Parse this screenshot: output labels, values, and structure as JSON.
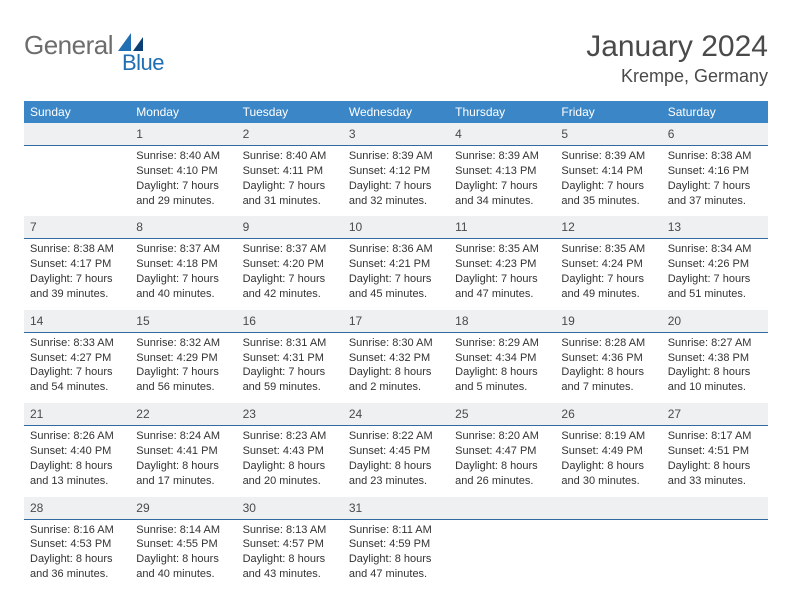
{
  "brand": {
    "part1": "General",
    "part2": "Blue"
  },
  "title": "January 2024",
  "location": "Krempe, Germany",
  "colors": {
    "header_bg": "#3b86c6",
    "daynum_bg": "#eef0f2",
    "daynum_border": "#2f6aa0",
    "logo_accent": "#1f6fb2",
    "text_muted": "#6d6d6d"
  },
  "daynames": [
    "Sunday",
    "Monday",
    "Tuesday",
    "Wednesday",
    "Thursday",
    "Friday",
    "Saturday"
  ],
  "weeks": [
    [
      {
        "n": "",
        "sunrise": "",
        "sunset": "",
        "daylight1": "",
        "daylight2": ""
      },
      {
        "n": "1",
        "sunrise": "Sunrise: 8:40 AM",
        "sunset": "Sunset: 4:10 PM",
        "daylight1": "Daylight: 7 hours",
        "daylight2": "and 29 minutes."
      },
      {
        "n": "2",
        "sunrise": "Sunrise: 8:40 AM",
        "sunset": "Sunset: 4:11 PM",
        "daylight1": "Daylight: 7 hours",
        "daylight2": "and 31 minutes."
      },
      {
        "n": "3",
        "sunrise": "Sunrise: 8:39 AM",
        "sunset": "Sunset: 4:12 PM",
        "daylight1": "Daylight: 7 hours",
        "daylight2": "and 32 minutes."
      },
      {
        "n": "4",
        "sunrise": "Sunrise: 8:39 AM",
        "sunset": "Sunset: 4:13 PM",
        "daylight1": "Daylight: 7 hours",
        "daylight2": "and 34 minutes."
      },
      {
        "n": "5",
        "sunrise": "Sunrise: 8:39 AM",
        "sunset": "Sunset: 4:14 PM",
        "daylight1": "Daylight: 7 hours",
        "daylight2": "and 35 minutes."
      },
      {
        "n": "6",
        "sunrise": "Sunrise: 8:38 AM",
        "sunset": "Sunset: 4:16 PM",
        "daylight1": "Daylight: 7 hours",
        "daylight2": "and 37 minutes."
      }
    ],
    [
      {
        "n": "7",
        "sunrise": "Sunrise: 8:38 AM",
        "sunset": "Sunset: 4:17 PM",
        "daylight1": "Daylight: 7 hours",
        "daylight2": "and 39 minutes."
      },
      {
        "n": "8",
        "sunrise": "Sunrise: 8:37 AM",
        "sunset": "Sunset: 4:18 PM",
        "daylight1": "Daylight: 7 hours",
        "daylight2": "and 40 minutes."
      },
      {
        "n": "9",
        "sunrise": "Sunrise: 8:37 AM",
        "sunset": "Sunset: 4:20 PM",
        "daylight1": "Daylight: 7 hours",
        "daylight2": "and 42 minutes."
      },
      {
        "n": "10",
        "sunrise": "Sunrise: 8:36 AM",
        "sunset": "Sunset: 4:21 PM",
        "daylight1": "Daylight: 7 hours",
        "daylight2": "and 45 minutes."
      },
      {
        "n": "11",
        "sunrise": "Sunrise: 8:35 AM",
        "sunset": "Sunset: 4:23 PM",
        "daylight1": "Daylight: 7 hours",
        "daylight2": "and 47 minutes."
      },
      {
        "n": "12",
        "sunrise": "Sunrise: 8:35 AM",
        "sunset": "Sunset: 4:24 PM",
        "daylight1": "Daylight: 7 hours",
        "daylight2": "and 49 minutes."
      },
      {
        "n": "13",
        "sunrise": "Sunrise: 8:34 AM",
        "sunset": "Sunset: 4:26 PM",
        "daylight1": "Daylight: 7 hours",
        "daylight2": "and 51 minutes."
      }
    ],
    [
      {
        "n": "14",
        "sunrise": "Sunrise: 8:33 AM",
        "sunset": "Sunset: 4:27 PM",
        "daylight1": "Daylight: 7 hours",
        "daylight2": "and 54 minutes."
      },
      {
        "n": "15",
        "sunrise": "Sunrise: 8:32 AM",
        "sunset": "Sunset: 4:29 PM",
        "daylight1": "Daylight: 7 hours",
        "daylight2": "and 56 minutes."
      },
      {
        "n": "16",
        "sunrise": "Sunrise: 8:31 AM",
        "sunset": "Sunset: 4:31 PM",
        "daylight1": "Daylight: 7 hours",
        "daylight2": "and 59 minutes."
      },
      {
        "n": "17",
        "sunrise": "Sunrise: 8:30 AM",
        "sunset": "Sunset: 4:32 PM",
        "daylight1": "Daylight: 8 hours",
        "daylight2": "and 2 minutes."
      },
      {
        "n": "18",
        "sunrise": "Sunrise: 8:29 AM",
        "sunset": "Sunset: 4:34 PM",
        "daylight1": "Daylight: 8 hours",
        "daylight2": "and 5 minutes."
      },
      {
        "n": "19",
        "sunrise": "Sunrise: 8:28 AM",
        "sunset": "Sunset: 4:36 PM",
        "daylight1": "Daylight: 8 hours",
        "daylight2": "and 7 minutes."
      },
      {
        "n": "20",
        "sunrise": "Sunrise: 8:27 AM",
        "sunset": "Sunset: 4:38 PM",
        "daylight1": "Daylight: 8 hours",
        "daylight2": "and 10 minutes."
      }
    ],
    [
      {
        "n": "21",
        "sunrise": "Sunrise: 8:26 AM",
        "sunset": "Sunset: 4:40 PM",
        "daylight1": "Daylight: 8 hours",
        "daylight2": "and 13 minutes."
      },
      {
        "n": "22",
        "sunrise": "Sunrise: 8:24 AM",
        "sunset": "Sunset: 4:41 PM",
        "daylight1": "Daylight: 8 hours",
        "daylight2": "and 17 minutes."
      },
      {
        "n": "23",
        "sunrise": "Sunrise: 8:23 AM",
        "sunset": "Sunset: 4:43 PM",
        "daylight1": "Daylight: 8 hours",
        "daylight2": "and 20 minutes."
      },
      {
        "n": "24",
        "sunrise": "Sunrise: 8:22 AM",
        "sunset": "Sunset: 4:45 PM",
        "daylight1": "Daylight: 8 hours",
        "daylight2": "and 23 minutes."
      },
      {
        "n": "25",
        "sunrise": "Sunrise: 8:20 AM",
        "sunset": "Sunset: 4:47 PM",
        "daylight1": "Daylight: 8 hours",
        "daylight2": "and 26 minutes."
      },
      {
        "n": "26",
        "sunrise": "Sunrise: 8:19 AM",
        "sunset": "Sunset: 4:49 PM",
        "daylight1": "Daylight: 8 hours",
        "daylight2": "and 30 minutes."
      },
      {
        "n": "27",
        "sunrise": "Sunrise: 8:17 AM",
        "sunset": "Sunset: 4:51 PM",
        "daylight1": "Daylight: 8 hours",
        "daylight2": "and 33 minutes."
      }
    ],
    [
      {
        "n": "28",
        "sunrise": "Sunrise: 8:16 AM",
        "sunset": "Sunset: 4:53 PM",
        "daylight1": "Daylight: 8 hours",
        "daylight2": "and 36 minutes."
      },
      {
        "n": "29",
        "sunrise": "Sunrise: 8:14 AM",
        "sunset": "Sunset: 4:55 PM",
        "daylight1": "Daylight: 8 hours",
        "daylight2": "and 40 minutes."
      },
      {
        "n": "30",
        "sunrise": "Sunrise: 8:13 AM",
        "sunset": "Sunset: 4:57 PM",
        "daylight1": "Daylight: 8 hours",
        "daylight2": "and 43 minutes."
      },
      {
        "n": "31",
        "sunrise": "Sunrise: 8:11 AM",
        "sunset": "Sunset: 4:59 PM",
        "daylight1": "Daylight: 8 hours",
        "daylight2": "and 47 minutes."
      },
      {
        "n": "",
        "sunrise": "",
        "sunset": "",
        "daylight1": "",
        "daylight2": ""
      },
      {
        "n": "",
        "sunrise": "",
        "sunset": "",
        "daylight1": "",
        "daylight2": ""
      },
      {
        "n": "",
        "sunrise": "",
        "sunset": "",
        "daylight1": "",
        "daylight2": ""
      }
    ]
  ]
}
